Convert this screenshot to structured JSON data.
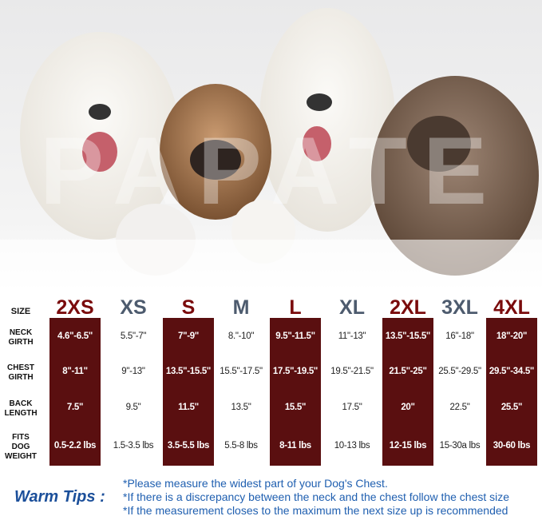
{
  "watermark": "PAPATE",
  "table": {
    "size_label": "SIZE",
    "sizes": [
      "2XS",
      "XS",
      "S",
      "M",
      "L",
      "XL",
      "2XL",
      "3XL",
      "4XL"
    ],
    "rows": [
      {
        "label": [
          "NECK",
          "GIRTH"
        ],
        "cells": [
          "4.6\"-6.5\"",
          "5.5\"-7\"",
          "7\"-9\"",
          "8.\"-10\"",
          "9.5\"-11.5\"",
          "11\"-13\"",
          "13.5\"-15.5\"",
          "16\"-18\"",
          "18\"-20\""
        ]
      },
      {
        "label": [
          "CHEST",
          "GIRTH"
        ],
        "cells": [
          "8\"-11\"",
          "9\"-13\"",
          "13.5\"-15.5\"",
          "15.5\"-17.5\"",
          "17.5\"-19.5\"",
          "19.5\"-21.5\"",
          "21.5\"-25\"",
          "25.5\"-29.5\"",
          "29.5\"-34.5\""
        ]
      },
      {
        "label": [
          "BACK",
          "LENGTH"
        ],
        "cells": [
          "7.5\"",
          "9.5\"",
          "11.5\"",
          "13.5\"",
          "15.5\"",
          "17.5\"",
          "20\"",
          "22.5\"",
          "25.5\""
        ]
      },
      {
        "label": [
          "FITS",
          "DOG",
          "WEIGHT"
        ],
        "cells": [
          "0.5-2.2 lbs",
          "1.5-3.5 lbs",
          "3.5-5.5 lbs",
          "5.5-8 lbs",
          "8-11 lbs",
          "10-13 lbs",
          "12-15 lbs",
          "15-30a lbs",
          "30-60 lbs"
        ]
      }
    ]
  },
  "tips": {
    "title": "Warm Tips :",
    "lines": [
      "*Please measure the widest part of your Dog's Chest.",
      "*If there is a discrepancy between the neck and the chest  follow the chest size",
      "*If the measurement closes to the maximum the next size up is recommended"
    ]
  }
}
